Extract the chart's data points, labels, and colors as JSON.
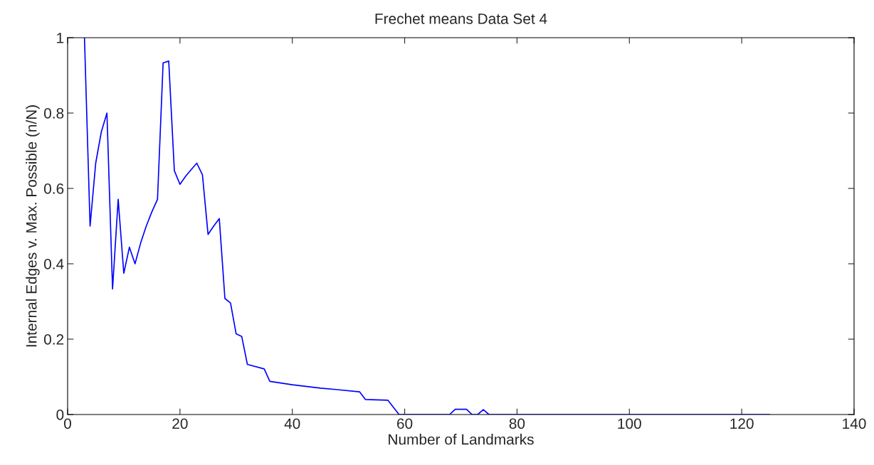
{
  "chart_data": {
    "type": "line",
    "title": "Frechet means Data Set 4",
    "xlabel": "Number of Landmarks",
    "ylabel": "Internal Edges v. Max. Possible (n/N)",
    "x": [
      3,
      4,
      5,
      6,
      7,
      8,
      9,
      10,
      11,
      12,
      13,
      14,
      15,
      16,
      17,
      18,
      19,
      20,
      21,
      22,
      23,
      24,
      25,
      26,
      27,
      28,
      29,
      30,
      31,
      32,
      35,
      36,
      40,
      45,
      48,
      52,
      53,
      57,
      59,
      68,
      69,
      71,
      72,
      73,
      74,
      75,
      125
    ],
    "series": [
      {
        "color": "#0000ff",
        "values": [
          1,
          0.5,
          0.667,
          0.75,
          0.8,
          0.333,
          0.571,
          0.375,
          0.444,
          0.4,
          0.455,
          0.5,
          0.538,
          0.571,
          0.933,
          0.938,
          0.647,
          0.611,
          0.632,
          0.65,
          0.667,
          0.636,
          0.478,
          0.5,
          0.52,
          0.308,
          0.296,
          0.214,
          0.207,
          0.133,
          0.121,
          0.088,
          0.079,
          0.07,
          0.066,
          0.06,
          0.04,
          0.038,
          0,
          0,
          0.014,
          0.014,
          0,
          0,
          0.013,
          0,
          0
        ]
      }
    ],
    "xlim": [
      0,
      140
    ],
    "ylim": [
      0,
      1
    ],
    "xticks": [
      0,
      20,
      40,
      60,
      80,
      100,
      120,
      140
    ],
    "yticks": [
      0,
      0.2,
      0.4,
      0.6,
      0.8,
      1
    ],
    "grid": false,
    "marker": "none",
    "line_style": "solid"
  }
}
